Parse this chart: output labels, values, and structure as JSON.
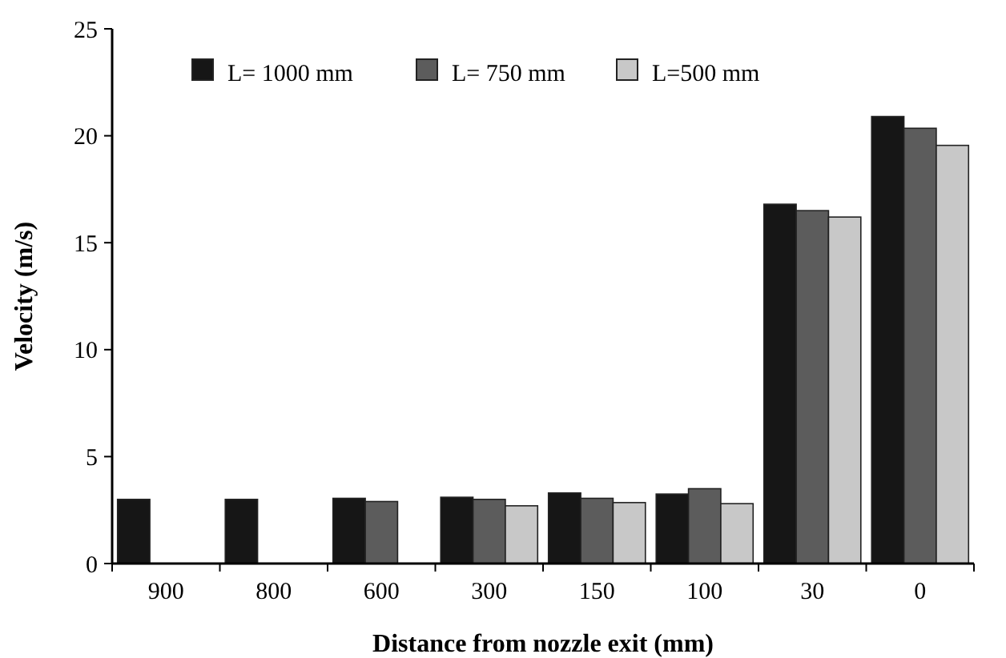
{
  "chart_data": {
    "type": "bar",
    "xlabel": "Distance from nozzle exit (mm)",
    "ylabel": "Velocity (m/s)",
    "categories": [
      "900",
      "800",
      "600",
      "300",
      "150",
      "100",
      "30",
      "0"
    ],
    "series": [
      {
        "name": "L= 1000 mm",
        "color": "#161616",
        "values": [
          3.0,
          3.0,
          3.05,
          3.1,
          3.3,
          3.25,
          16.8,
          20.9
        ]
      },
      {
        "name": "L= 750 mm",
        "color": "#5c5c5c",
        "values": [
          null,
          null,
          2.9,
          3.0,
          3.05,
          3.5,
          16.5,
          20.35
        ]
      },
      {
        "name": "L=500 mm",
        "color": "#c8c8c8",
        "values": [
          null,
          null,
          null,
          2.7,
          2.85,
          2.8,
          16.2,
          19.55
        ]
      }
    ],
    "ylim": [
      0,
      25
    ],
    "yticks": [
      0,
      5,
      10,
      15,
      20,
      25
    ],
    "grid": false,
    "legend": "top"
  }
}
